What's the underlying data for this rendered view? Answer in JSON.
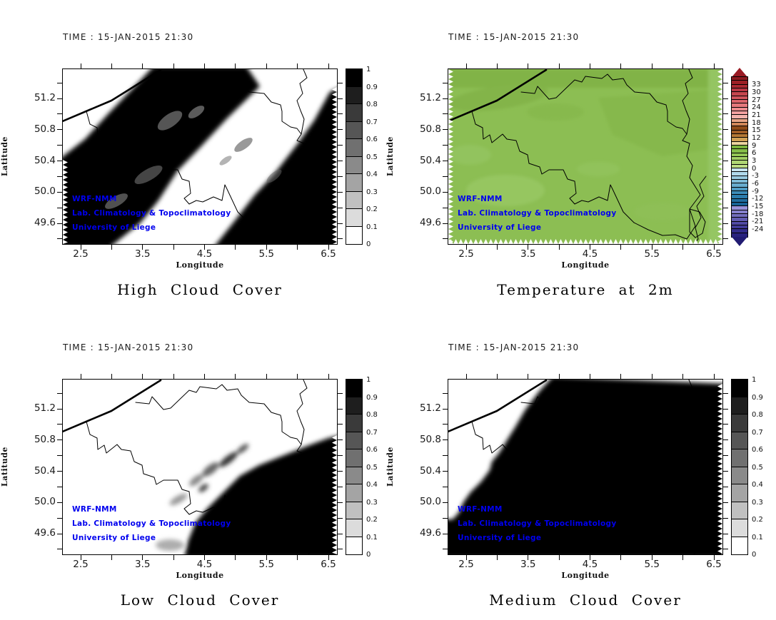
{
  "time_label": "TIME : 15-JAN-2015 21:30",
  "watermark": {
    "line1": "WRF-NMM",
    "line2": "Lab. Climatology & Topoclimatology",
    "line3": "University of Liege",
    "color": "#0000EE"
  },
  "axes": {
    "xlabel": "Longitude",
    "ylabel": "Latitude",
    "lon_ticks": [
      2.5,
      3.5,
      4.5,
      5.5,
      6.5
    ],
    "lat_ticks": [
      51.2,
      50.8,
      50.4,
      50.0,
      49.6
    ],
    "lon_range": [
      2.2,
      6.65
    ],
    "lat_range": [
      49.33,
      51.58
    ]
  },
  "panels": [
    {
      "id": "high-cloud-cover",
      "title": "High Cloud Cover",
      "colorbar": "cloud"
    },
    {
      "id": "temperature-2m",
      "title": "Temperature at 2m",
      "colorbar": "temperature"
    },
    {
      "id": "low-cloud-cover",
      "title": "Low Cloud Cover",
      "colorbar": "cloud"
    },
    {
      "id": "medium-cloud-cover",
      "title": "Medium Cloud Cover",
      "colorbar": "cloud"
    }
  ],
  "colorbars": {
    "cloud": {
      "unit": "fraction",
      "min": 0,
      "max": 1,
      "tick_labels": [
        "1",
        "0.9",
        "0.8",
        "0.7",
        "0.6",
        "0.5",
        "0.4",
        "0.3",
        "0.2",
        "0.1",
        "0"
      ],
      "cell_colors_top_to_bottom": [
        "#000000",
        "#1E1E1E",
        "#3A3A3A",
        "#565656",
        "#707070",
        "#8A8A8A",
        "#A4A4A4",
        "#C0C0C0",
        "#DCDCDC",
        "#FFFFFF"
      ]
    },
    "temperature": {
      "unit": "degC",
      "tick_values": [
        33,
        30,
        27,
        24,
        21,
        18,
        15,
        12,
        9,
        6,
        3,
        0,
        -3,
        -6,
        -9,
        -12,
        -15,
        -18,
        -21,
        -24
      ],
      "cap_top_color": "#9A1B24",
      "cap_bottom_color": "#211B72",
      "stripe_colors_top_to_bottom": [
        "#8E1A20",
        "#9C2026",
        "#AA2A32",
        "#B83844",
        "#C4464E",
        "#D0545C",
        "#DC666C",
        "#E4787C",
        "#EC8C8E",
        "#F2A0A0",
        "#F2B2AC",
        "#E9A586",
        "#D2885A",
        "#8F4B18",
        "#9E5C26",
        "#B57936",
        "#D0A055",
        "#EBD49E",
        "#79B23C",
        "#85BC48",
        "#93C656",
        "#A1CE64",
        "#AFD674",
        "#BDDE86",
        "#C8E4F0",
        "#B0D8EA",
        "#98CAE0",
        "#80BCD8",
        "#68ACCE",
        "#509CC4",
        "#3C8CB8",
        "#2C7CAC",
        "#206EA0",
        "#166294",
        "#9792D8",
        "#8580CB",
        "#736EBE",
        "#625CB1",
        "#514AA4",
        "#403A97",
        "#322C8A",
        "#28227E"
      ]
    }
  },
  "map": {
    "base_green": "#8CBE53",
    "border_color": "#000000"
  },
  "chart_data": [
    {
      "type": "heatmap",
      "variable": "high_cloud_cover",
      "title": "High Cloud Cover",
      "time": "15-JAN-2015 21:30",
      "xlabel": "Longitude",
      "ylabel": "Latitude",
      "x_ticks": [
        2.5,
        3.5,
        4.5,
        5.5,
        6.5
      ],
      "y_ticks": [
        49.6,
        50.0,
        50.4,
        50.8,
        51.2
      ],
      "xlim": [
        2.2,
        6.65
      ],
      "ylim": [
        49.33,
        51.58
      ],
      "value_range": [
        0,
        1
      ],
      "colorbar_ticks": [
        0,
        0.1,
        0.2,
        0.3,
        0.4,
        0.5,
        0.6,
        0.7,
        0.8,
        0.9,
        1
      ],
      "colorbar_scheme": "white (0) to black (1) grayscale",
      "pattern_summary": "Overcast (~1) SW-NE band covering western/central Belgium and a second overcast band in the southeast reaching the right edge; clear (~0) diagonal corridor between them and a clear northwest corner near the coast"
    },
    {
      "type": "heatmap",
      "variable": "temperature_2m",
      "title": "Temperature at 2m",
      "time": "15-JAN-2015 21:30",
      "xlabel": "Longitude",
      "ylabel": "Latitude",
      "x_ticks": [
        2.5,
        3.5,
        4.5,
        5.5,
        6.5
      ],
      "y_ticks": [
        49.6,
        50.0,
        50.4,
        50.8,
        51.2
      ],
      "xlim": [
        2.2,
        6.65
      ],
      "ylim": [
        49.33,
        51.58
      ],
      "value_range": [
        -24,
        33
      ],
      "colorbar_ticks": [
        33,
        30,
        27,
        24,
        21,
        18,
        15,
        12,
        9,
        6,
        3,
        0,
        -3,
        -6,
        -9,
        -12,
        -15,
        -18,
        -21,
        -24
      ],
      "colorbar_scheme": "purple/blue (cold) through green (~0-9) to brown/red (warm), with overflow arrow caps",
      "pattern_summary": "Nearly uniform ~3-6 degC (green) over the whole domain, marginally darker green in the north and lighter green patches in the south and east"
    },
    {
      "type": "heatmap",
      "variable": "low_cloud_cover",
      "title": "Low Cloud Cover",
      "time": "15-JAN-2015 21:30",
      "xlabel": "Longitude",
      "ylabel": "Latitude",
      "x_ticks": [
        2.5,
        3.5,
        4.5,
        5.5,
        6.5
      ],
      "y_ticks": [
        49.6,
        50.0,
        50.4,
        50.8,
        51.2
      ],
      "xlim": [
        2.2,
        6.65
      ],
      "ylim": [
        49.33,
        51.58
      ],
      "value_range": [
        0,
        1
      ],
      "colorbar_ticks": [
        0,
        0.1,
        0.2,
        0.3,
        0.4,
        0.5,
        0.6,
        0.7,
        0.8,
        0.9,
        1
      ],
      "colorbar_scheme": "white (0) to black (1) grayscale",
      "pattern_summary": "Clear (~0) over most of Belgium; overcast (~1) wedge filling the southeast corner with scattered gray patches along its northwestern edge"
    },
    {
      "type": "heatmap",
      "variable": "medium_cloud_cover",
      "title": "Medium Cloud Cover",
      "time": "15-JAN-2015 21:30",
      "xlabel": "Longitude",
      "ylabel": "Latitude",
      "x_ticks": [
        2.5,
        3.5,
        4.5,
        5.5,
        6.5
      ],
      "y_ticks": [
        49.6,
        50.0,
        50.4,
        50.8,
        51.2
      ],
      "xlim": [
        2.2,
        6.65
      ],
      "ylim": [
        49.33,
        51.58
      ],
      "value_range": [
        0,
        1
      ],
      "colorbar_ticks": [
        0,
        0.1,
        0.2,
        0.3,
        0.4,
        0.5,
        0.6,
        0.7,
        0.8,
        0.9,
        1
      ],
      "colorbar_scheme": "white (0) to black (1) grayscale",
      "pattern_summary": "Overcast (~1) over almost the entire domain; clear (~0) only in the northwest corner near the coastline"
    }
  ]
}
